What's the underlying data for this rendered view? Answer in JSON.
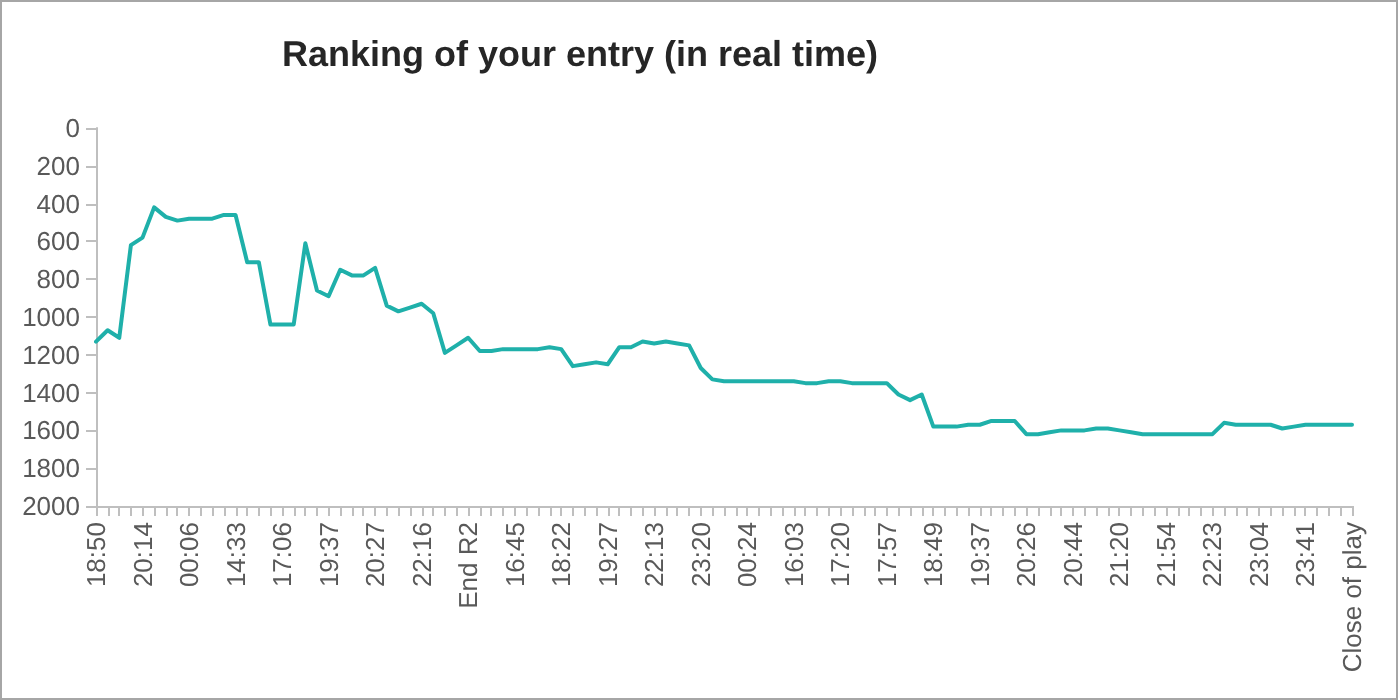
{
  "chart_data": {
    "type": "line",
    "title": "Ranking of your entry (in real time)",
    "categories": [
      "18:50",
      null,
      null,
      null,
      "20:14",
      null,
      null,
      null,
      "00:06",
      null,
      null,
      null,
      "14:33",
      null,
      null,
      null,
      "17:06",
      null,
      null,
      null,
      "19:37",
      null,
      null,
      null,
      "20:27",
      null,
      null,
      null,
      "22:16",
      null,
      null,
      null,
      "End R2",
      null,
      null,
      null,
      "16:45",
      null,
      null,
      null,
      "18:22",
      null,
      null,
      null,
      "19:27",
      null,
      null,
      null,
      "22:13",
      null,
      null,
      null,
      "23:20",
      null,
      null,
      null,
      "00:24",
      null,
      null,
      null,
      "16:03",
      null,
      null,
      null,
      "17:20",
      null,
      null,
      null,
      "17:57",
      null,
      null,
      null,
      "18:49",
      null,
      null,
      null,
      "19:37",
      null,
      null,
      null,
      "20:26",
      null,
      null,
      null,
      "20:44",
      null,
      null,
      null,
      "21:20",
      null,
      null,
      null,
      "21:54",
      null,
      null,
      null,
      "22:23",
      null,
      null,
      null,
      "23:04",
      null,
      null,
      null,
      "23:41",
      null,
      null,
      null,
      "Close of play"
    ],
    "series": [
      {
        "color": "#1fb0aa",
        "values": [
          1130,
          1070,
          1110,
          620,
          580,
          420,
          470,
          490,
          480,
          480,
          480,
          460,
          460,
          710,
          710,
          1040,
          1040,
          1040,
          610,
          860,
          890,
          750,
          780,
          780,
          740,
          940,
          970,
          950,
          930,
          980,
          1190,
          1150,
          1110,
          1180,
          1180,
          1170,
          1170,
          1170,
          1170,
          1160,
          1170,
          1260,
          1250,
          1240,
          1250,
          1160,
          1160,
          1130,
          1140,
          1130,
          1140,
          1150,
          1270,
          1330,
          1340,
          1340,
          1340,
          1340,
          1340,
          1340,
          1340,
          1350,
          1350,
          1340,
          1340,
          1350,
          1350,
          1350,
          1350,
          1410,
          1440,
          1410,
          1580,
          1580,
          1580,
          1570,
          1570,
          1550,
          1550,
          1550,
          1620,
          1620,
          1610,
          1600,
          1600,
          1600,
          1590,
          1590,
          1600,
          1610,
          1620,
          1620,
          1620,
          1620,
          1620,
          1620,
          1620,
          1560,
          1570,
          1570,
          1570,
          1570,
          1590,
          1580,
          1570,
          1570,
          1570,
          1570,
          1570
        ]
      }
    ],
    "ylim": [
      2000,
      0
    ],
    "yticks": [
      0,
      200,
      400,
      600,
      800,
      1000,
      1200,
      1400,
      1600,
      1800,
      2000
    ],
    "grid": false,
    "marker": "none",
    "line_style": "solid"
  }
}
